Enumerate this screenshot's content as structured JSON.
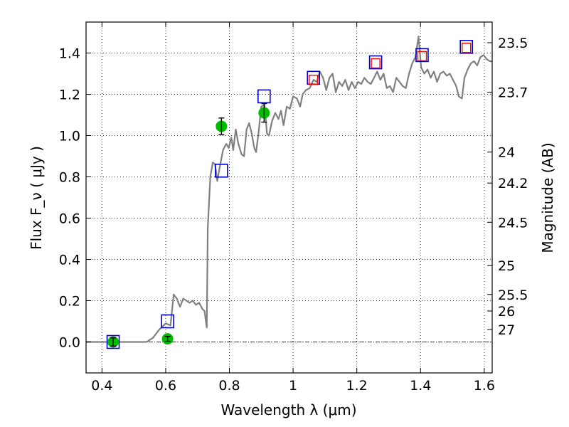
{
  "chart_data": {
    "type": "scatter",
    "xlabel": "Wavelength  λ (μm)",
    "ylabel": "Flux  F_ν  ( μJy )",
    "ylabel_right": "Magnitude (AB)",
    "xlim": [
      0.35,
      1.625
    ],
    "ylim": [
      -0.15,
      1.55
    ],
    "grid": true,
    "x_ticks": [
      0.4,
      0.6,
      0.8,
      1.0,
      1.2,
      1.4,
      1.6
    ],
    "x_tick_labels": [
      "0.4",
      "0.6",
      "0.8",
      "1",
      "1.2",
      "1.4",
      "1.6"
    ],
    "y_ticks": [
      0.0,
      0.2,
      0.4,
      0.6,
      0.8,
      1.0,
      1.2,
      1.4
    ],
    "y_tick_labels": [
      "0.0",
      "0.2",
      "0.4",
      "0.6",
      "0.8",
      "1.0",
      "1.2",
      "1.4"
    ],
    "right_ticks": [
      {
        "label": "23.5",
        "flux": 1.45
      },
      {
        "label": "23.7",
        "flux": 1.21
      },
      {
        "label": "24",
        "flux": 0.92
      },
      {
        "label": "24.2",
        "flux": 0.77
      },
      {
        "label": "24.5",
        "flux": 0.58
      },
      {
        "label": "25",
        "flux": 0.37
      },
      {
        "label": "25.5",
        "flux": 0.23
      },
      {
        "label": "26",
        "flux": 0.15
      },
      {
        "label": "27",
        "flux": 0.06
      }
    ],
    "zero_line": 0.0,
    "series": [
      {
        "kind": "spectrum",
        "color": "#808080",
        "points": [
          [
            0.35,
            0.0
          ],
          [
            0.54,
            0.0
          ],
          [
            0.56,
            0.02
          ],
          [
            0.58,
            0.06
          ],
          [
            0.6,
            0.09
          ],
          [
            0.615,
            0.08
          ],
          [
            0.625,
            0.23
          ],
          [
            0.635,
            0.21
          ],
          [
            0.645,
            0.17
          ],
          [
            0.655,
            0.21
          ],
          [
            0.665,
            0.2
          ],
          [
            0.675,
            0.19
          ],
          [
            0.685,
            0.2
          ],
          [
            0.695,
            0.18
          ],
          [
            0.705,
            0.19
          ],
          [
            0.715,
            0.16
          ],
          [
            0.722,
            0.15
          ],
          [
            0.727,
            0.09
          ],
          [
            0.729,
            0.07
          ],
          [
            0.732,
            0.55
          ],
          [
            0.74,
            0.8
          ],
          [
            0.748,
            0.87
          ],
          [
            0.755,
            0.86
          ],
          [
            0.762,
            0.78
          ],
          [
            0.77,
            0.85
          ],
          [
            0.78,
            0.93
          ],
          [
            0.79,
            0.96
          ],
          [
            0.798,
            0.94
          ],
          [
            0.806,
            0.99
          ],
          [
            0.812,
            0.93
          ],
          [
            0.82,
            1.03
          ],
          [
            0.828,
            0.96
          ],
          [
            0.838,
            0.91
          ],
          [
            0.846,
            0.9
          ],
          [
            0.854,
            1.03
          ],
          [
            0.862,
            1.06
          ],
          [
            0.87,
            1.01
          ],
          [
            0.878,
            0.94
          ],
          [
            0.884,
            0.92
          ],
          [
            0.892,
            1.02
          ],
          [
            0.9,
            1.14
          ],
          [
            0.91,
            1.15
          ],
          [
            0.918,
            1.01
          ],
          [
            0.924,
            1.0
          ],
          [
            0.934,
            1.07
          ],
          [
            0.944,
            1.11
          ],
          [
            0.954,
            1.08
          ],
          [
            0.962,
            1.12
          ],
          [
            0.97,
            1.05
          ],
          [
            0.98,
            1.14
          ],
          [
            0.99,
            1.13
          ],
          [
            1.0,
            1.19
          ],
          [
            1.012,
            1.18
          ],
          [
            1.022,
            1.14
          ],
          [
            1.03,
            1.2
          ],
          [
            1.04,
            1.22
          ],
          [
            1.052,
            1.23
          ],
          [
            1.064,
            1.27
          ],
          [
            1.074,
            1.26
          ],
          [
            1.084,
            1.31
          ],
          [
            1.094,
            1.28
          ],
          [
            1.104,
            1.22
          ],
          [
            1.114,
            1.28
          ],
          [
            1.124,
            1.3
          ],
          [
            1.134,
            1.21
          ],
          [
            1.144,
            1.26
          ],
          [
            1.154,
            1.24
          ],
          [
            1.164,
            1.27
          ],
          [
            1.174,
            1.22
          ],
          [
            1.184,
            1.26
          ],
          [
            1.194,
            1.23
          ],
          [
            1.204,
            1.26
          ],
          [
            1.214,
            1.25
          ],
          [
            1.224,
            1.28
          ],
          [
            1.234,
            1.26
          ],
          [
            1.244,
            1.25
          ],
          [
            1.254,
            1.28
          ],
          [
            1.264,
            1.31
          ],
          [
            1.274,
            1.27
          ],
          [
            1.284,
            1.3
          ],
          [
            1.294,
            1.23
          ],
          [
            1.304,
            1.24
          ],
          [
            1.314,
            1.21
          ],
          [
            1.324,
            1.28
          ],
          [
            1.334,
            1.26
          ],
          [
            1.344,
            1.24
          ],
          [
            1.354,
            1.23
          ],
          [
            1.364,
            1.3
          ],
          [
            1.374,
            1.35
          ],
          [
            1.384,
            1.38
          ],
          [
            1.394,
            1.48
          ],
          [
            1.402,
            1.33
          ],
          [
            1.412,
            1.3
          ],
          [
            1.422,
            1.32
          ],
          [
            1.432,
            1.28
          ],
          [
            1.442,
            1.31
          ],
          [
            1.452,
            1.26
          ],
          [
            1.462,
            1.3
          ],
          [
            1.472,
            1.31
          ],
          [
            1.482,
            1.29
          ],
          [
            1.492,
            1.3
          ],
          [
            1.502,
            1.27
          ],
          [
            1.512,
            1.24
          ],
          [
            1.52,
            1.19
          ],
          [
            1.53,
            1.18
          ],
          [
            1.538,
            1.28
          ],
          [
            1.548,
            1.32
          ],
          [
            1.558,
            1.35
          ],
          [
            1.568,
            1.36
          ],
          [
            1.578,
            1.34
          ],
          [
            1.588,
            1.38
          ],
          [
            1.598,
            1.39
          ],
          [
            1.608,
            1.37
          ],
          [
            1.618,
            1.36
          ],
          [
            1.625,
            1.36
          ]
        ]
      },
      {
        "kind": "observed",
        "color": "#00bb00",
        "marker": "circle",
        "points": [
          {
            "x": 0.435,
            "y": 0.0,
            "err": 0.02
          },
          {
            "x": 0.606,
            "y": 0.015,
            "err": 0.012
          },
          {
            "x": 0.775,
            "y": 1.045,
            "err": 0.04
          },
          {
            "x": 0.909,
            "y": 1.11,
            "err": 0.045
          }
        ]
      },
      {
        "kind": "model-blue",
        "color": "#0000cc",
        "marker": "open-square",
        "points": [
          {
            "x": 0.435,
            "y": 0.0
          },
          {
            "x": 0.606,
            "y": 0.1
          },
          {
            "x": 0.775,
            "y": 0.83
          },
          {
            "x": 0.909,
            "y": 1.19
          },
          {
            "x": 1.064,
            "y": 1.28
          },
          {
            "x": 1.259,
            "y": 1.355
          },
          {
            "x": 1.405,
            "y": 1.39
          },
          {
            "x": 1.544,
            "y": 1.43
          }
        ]
      },
      {
        "kind": "model-red",
        "color": "#ff0000",
        "marker": "open-square-small",
        "points": [
          {
            "x": 1.064,
            "y": 1.27
          },
          {
            "x": 1.259,
            "y": 1.35
          },
          {
            "x": 1.405,
            "y": 1.385
          },
          {
            "x": 1.544,
            "y": 1.425
          }
        ]
      }
    ]
  }
}
